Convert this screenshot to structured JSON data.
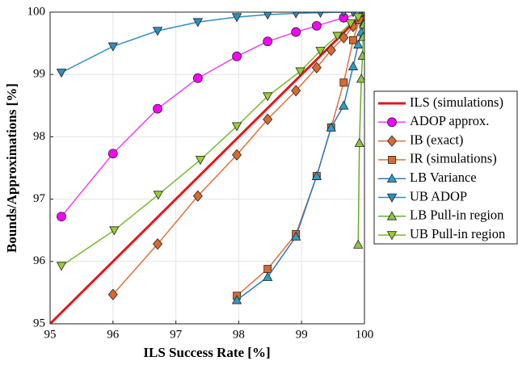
{
  "chart_data": {
    "type": "line",
    "x_label": "ILS Success Rate [%]",
    "y_label": "Bounds/Approximations [%]",
    "xlim": [
      95,
      100
    ],
    "ylim": [
      95,
      100
    ],
    "xticks": [
      95,
      96,
      97,
      98,
      99,
      100
    ],
    "yticks": [
      95,
      96,
      97,
      98,
      99,
      100
    ],
    "grid": true,
    "legend": "right",
    "series": [
      {
        "name": "ILS (simulations)",
        "color": "#e8161a",
        "marker": "none",
        "width": 3,
        "x": [
          95,
          100
        ],
        "values": [
          95,
          100
        ]
      },
      {
        "name": "ADOP approx.",
        "color": "#f040f0",
        "marker": "circle",
        "marker_color": "#ff00ff",
        "width": 1.5,
        "x": [
          95.18,
          96.0,
          96.71,
          97.35,
          97.97,
          98.46,
          98.91,
          99.24,
          99.67,
          100
        ],
        "values": [
          96.72,
          97.73,
          98.45,
          98.94,
          99.29,
          99.53,
          99.68,
          99.78,
          99.91,
          100
        ]
      },
      {
        "name": "IB (exact)",
        "color": "#e0703a",
        "marker": "diamond",
        "marker_color": "#d9692f",
        "width": 1.5,
        "x": [
          96.0,
          96.71,
          97.35,
          97.97,
          98.46,
          98.91,
          99.24,
          99.47,
          99.67,
          99.82,
          99.95,
          100
        ],
        "values": [
          95.47,
          96.28,
          97.05,
          97.71,
          98.28,
          98.74,
          99.11,
          99.39,
          99.59,
          99.77,
          99.91,
          100
        ]
      },
      {
        "name": "IR (simulations)",
        "color": "#e0703a",
        "marker": "square",
        "marker_color": "#d9692f",
        "width": 1.5,
        "x": [
          97.97,
          98.46,
          98.91,
          99.24,
          99.47,
          99.67,
          99.82,
          99.92,
          100
        ],
        "values": [
          95.45,
          95.88,
          96.44,
          97.37,
          98.15,
          98.87,
          99.55,
          99.87,
          100
        ]
      },
      {
        "name": "LB Variance",
        "color": "#2f79b8",
        "marker": "triangle-up",
        "marker_color": "#2aa0c8",
        "width": 1.5,
        "x": [
          97.97,
          98.46,
          98.91,
          99.24,
          99.47,
          99.67,
          99.82,
          99.9,
          99.95,
          99.99
        ],
        "values": [
          95.38,
          95.75,
          96.4,
          97.37,
          98.15,
          98.5,
          99.13,
          99.48,
          99.68,
          99.83
        ]
      },
      {
        "name": "UB ADOP",
        "color": "#2f8fc0",
        "marker": "triangle-down",
        "marker_color": "#2a8fc4",
        "width": 1.5,
        "x": [
          95.18,
          96.0,
          96.71,
          97.35,
          97.97,
          98.46,
          98.91,
          99.3,
          99.67,
          99.82,
          99.95
        ],
        "values": [
          99.03,
          99.45,
          99.7,
          99.84,
          99.92,
          99.96,
          99.98,
          99.99,
          100,
          100,
          100
        ]
      },
      {
        "name": "LB Pull-in region",
        "color": "#6aad2a",
        "marker": "triangle-up",
        "marker_color": "#8cc63f",
        "width": 1.5,
        "x": [
          99.9,
          99.92,
          99.95,
          99.97,
          99.98,
          99.99,
          100
        ],
        "values": [
          96.27,
          97.9,
          98.93,
          99.3,
          99.6,
          99.8,
          100
        ]
      },
      {
        "name": "UB Pull-in region",
        "color": "#7ab82e",
        "marker": "triangle-down",
        "marker_color": "#9acd32",
        "width": 1.5,
        "x": [
          95.18,
          96.02,
          96.72,
          97.39,
          97.97,
          98.46,
          98.98,
          99.3,
          99.57,
          99.78,
          99.9,
          100
        ],
        "values": [
          95.93,
          96.5,
          97.07,
          97.63,
          98.17,
          98.65,
          99.05,
          99.38,
          99.62,
          99.82,
          99.92,
          100
        ]
      }
    ]
  }
}
